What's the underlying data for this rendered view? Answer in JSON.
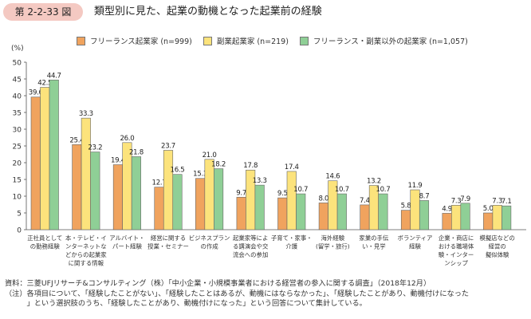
{
  "figure": {
    "number": "第 2-2-33 図",
    "title": "類型別に見た、起業の動機となった起業前の経験"
  },
  "colors": {
    "badge": "#f4c9c2",
    "freelance": "#f0a35e",
    "side": "#fce37c",
    "other": "#8fcf96"
  },
  "chart_data": {
    "type": "bar",
    "ylabel": "(%)",
    "ylim": [
      0,
      50
    ],
    "yticks": [
      "0",
      "5",
      "10",
      "15",
      "20",
      "25",
      "30",
      "35",
      "40",
      "45",
      "50"
    ],
    "grid": false,
    "legend_position": "top",
    "categories": [
      [
        "正社員として",
        "の勤務経験"
      ],
      [
        "本・テレビ・イ",
        "ンターネットな",
        "どからの起業家",
        "に関する情報"
      ],
      [
        "アルバイト・",
        "パート経験"
      ],
      [
        "経営に関する",
        "授業・セミナー"
      ],
      [
        "ビジネスプラン",
        "の作成"
      ],
      [
        "起業家等によ",
        "る講演会や交",
        "流会への参加"
      ],
      [
        "子育て・家事・",
        "介護"
      ],
      [
        "海外経験",
        "(留学・旅行)"
      ],
      [
        "家業の手伝",
        "い・見学"
      ],
      [
        "ボランティア",
        "経験"
      ],
      [
        "企業・商店に",
        "おける職場体",
        "験・インター",
        "ンシップ"
      ],
      [
        "模擬店などの",
        "経営の",
        "擬似体験"
      ]
    ],
    "series": [
      {
        "name": "フリーランス起業家 (n=999)",
        "color": "#f0a35e",
        "values": [
          39.6,
          25.4,
          19.4,
          12.7,
          15.3,
          9.7,
          9.5,
          8.0,
          7.4,
          5.8,
          4.9,
          5.0
        ],
        "labels": [
          "39.6",
          "25.4",
          "19.4",
          "12.7",
          "15.3",
          "9.7",
          "9.5",
          "8.0",
          "7.4",
          "5.8",
          "4.9",
          "5.0"
        ]
      },
      {
        "name": "副業起業家 (n=219)",
        "color": "#fce37c",
        "values": [
          42.5,
          33.3,
          26.0,
          23.7,
          21.0,
          17.8,
          17.4,
          14.6,
          13.2,
          11.9,
          7.3,
          7.3
        ],
        "labels": [
          "42.5",
          "33.3",
          "26.0",
          "23.7",
          "21.0",
          "17.8",
          "17.4",
          "14.6",
          "13.2",
          "11.9",
          "7.3",
          "7.3"
        ]
      },
      {
        "name": "フリーランス・副業以外の起業家 (n=1,057)",
        "color": "#8fcf96",
        "values": [
          44.7,
          23.2,
          21.8,
          16.5,
          18.2,
          13.3,
          10.7,
          10.7,
          10.7,
          8.7,
          7.9,
          7.1
        ],
        "labels": [
          "44.7",
          "23.2",
          "21.8",
          "16.5",
          "18.2",
          "13.3",
          "10.7",
          "10.7",
          "10.7",
          "8.7",
          "7.9",
          "7.1"
        ]
      }
    ]
  },
  "notes": {
    "source": "資料：三菱UFJリサーチ&コンサルティング（株）「中小企業・小規模事業者における経営者の参入に関する調査」（2018年12月）",
    "note1": "（注）各項目について、「経験したことがない」、「経験したことはあるが、動機にはならなかった」、「経験したことがあり、動機付けになった",
    "note2": "　　　」という選択肢のうち、「経験したことがあり、動機付けになった」という回答について集計している。"
  }
}
